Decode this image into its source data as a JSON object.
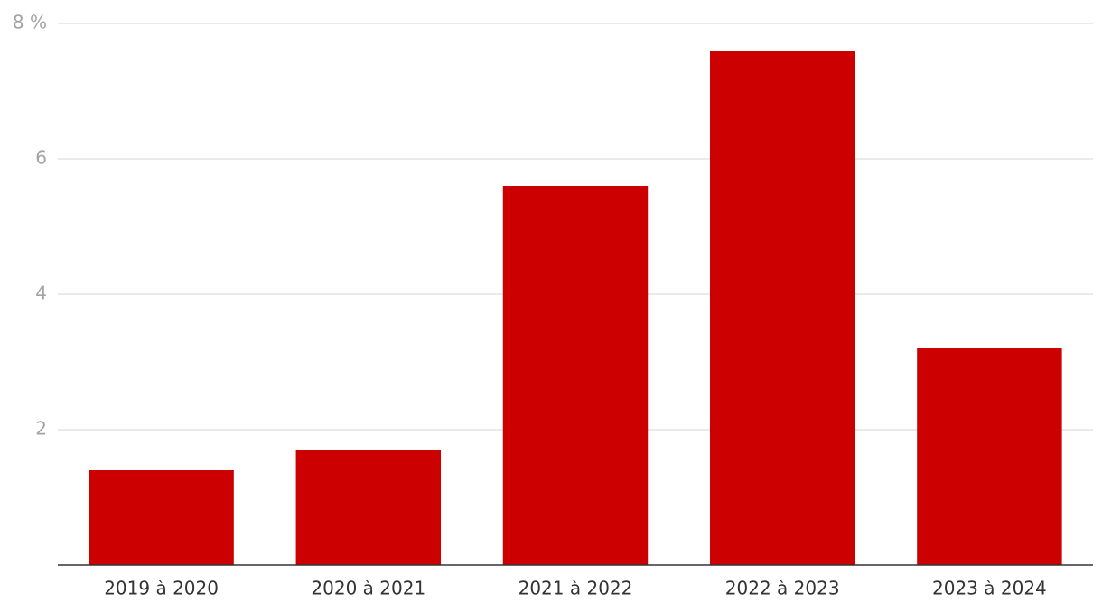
{
  "chart_data": {
    "type": "bar",
    "categories": [
      "2019 à 2020",
      "2020 à 2021",
      "2021 à 2022",
      "2022 à 2023",
      "2023 à 2024"
    ],
    "values": [
      1.4,
      1.7,
      5.6,
      7.6,
      3.2
    ],
    "color": "#cc0000",
    "ylim": [
      0,
      8
    ],
    "yticks": [
      2,
      4,
      6,
      {
        "value": 8,
        "label": "8 %"
      }
    ],
    "grid": true
  }
}
